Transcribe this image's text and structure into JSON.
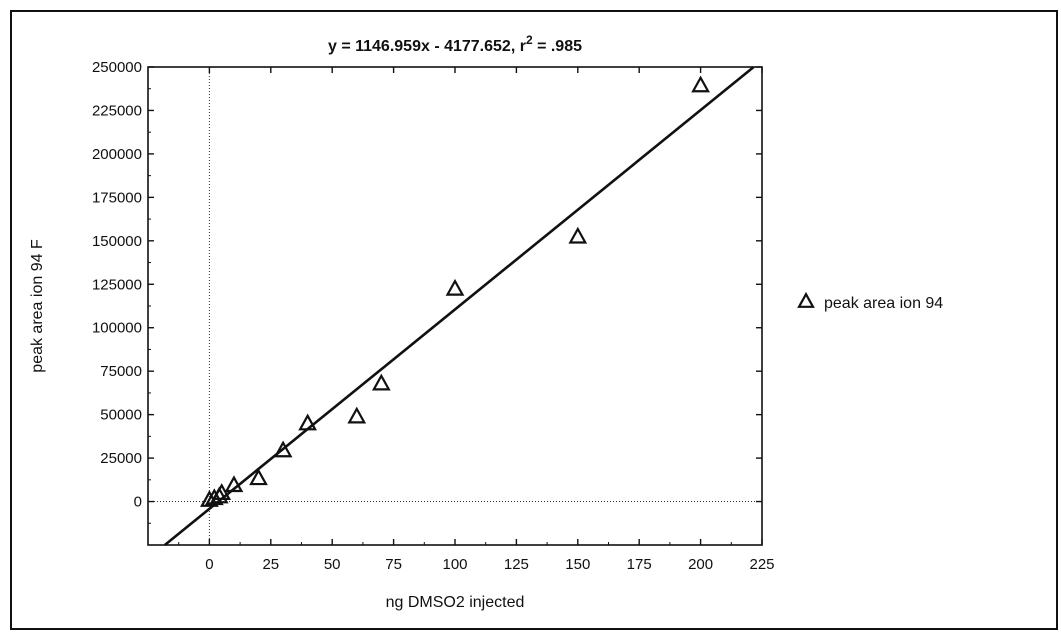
{
  "chart_data": {
    "type": "scatter",
    "title": "y = 1146.959x - 4177.652, r",
    "title_sup": "2",
    "title_tail": " = .985",
    "xlabel": "ng DMSO2 injected",
    "ylabel": "peak area ion 94 F",
    "xlim": [
      -25,
      225
    ],
    "ylim": [
      -25000,
      250000
    ],
    "xticks": [
      0,
      25,
      50,
      75,
      100,
      125,
      150,
      175,
      200,
      225
    ],
    "yticks": [
      0,
      25000,
      50000,
      75000,
      100000,
      125000,
      150000,
      175000,
      200000,
      225000,
      250000
    ],
    "legend_position": "right",
    "fit": {
      "slope": 1146.959,
      "intercept": -4177.652,
      "r2": 0.985
    },
    "series": [
      {
        "name": "peak area ion 94",
        "marker": "triangle",
        "x": [
          0,
          2,
          4,
          5,
          10,
          20,
          30,
          40,
          60,
          70,
          100,
          150,
          200
        ],
        "y": [
          500,
          1500,
          2500,
          4500,
          9000,
          13000,
          29000,
          44500,
          48500,
          67500,
          122000,
          152000,
          239000
        ]
      }
    ]
  }
}
